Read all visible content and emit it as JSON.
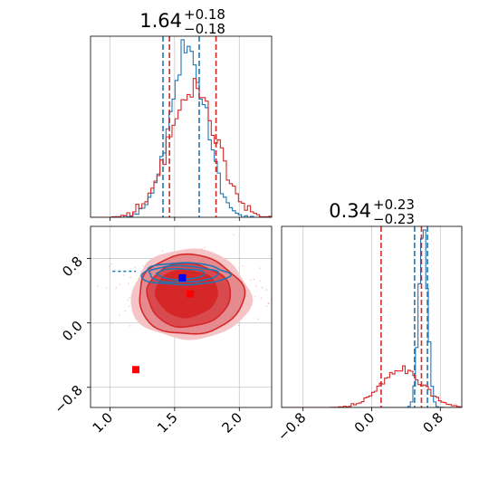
{
  "chart_data": [
    {
      "type": "histogram",
      "title_value": "1.64",
      "title_plus": "+0.18",
      "title_minus": "−0.18",
      "xlim": [
        0.85,
        2.25
      ],
      "grid": true,
      "series": [
        {
          "name": "",
          "color": "#1f77b4",
          "center": 1.6,
          "sigma": 0.14,
          "quantiles": [
            1.41,
            1.69
          ]
        },
        {
          "name": "",
          "color": "#d62728",
          "center": 1.64,
          "sigma": 0.18,
          "quantiles": [
            1.46,
            1.82
          ]
        }
      ]
    },
    {
      "type": "histogram",
      "title_value": "0.34",
      "title_plus": "+0.23",
      "title_minus": "−0.23",
      "xlim": [
        -1.05,
        1.05
      ],
      "xticks": [
        "−0.8",
        "0.0",
        "0.8"
      ],
      "xtick_values": [
        -0.8,
        0.0,
        0.8
      ],
      "grid": true,
      "series": [
        {
          "name": "",
          "color": "#1f77b4",
          "center": 0.6,
          "sigma": 0.05,
          "quantiles": [
            0.5,
            0.65
          ]
        },
        {
          "name": "",
          "color": "#d62728",
          "center": 0.35,
          "sigma": 0.24,
          "quantiles": [
            0.11,
            0.58
          ]
        }
      ]
    },
    {
      "type": "contour",
      "xlim": [
        0.85,
        2.25
      ],
      "ylim": [
        -1.05,
        1.2
      ],
      "xticks": [
        "1.0",
        "1.5",
        "2.0"
      ],
      "xtick_values": [
        1.0,
        1.5,
        2.0
      ],
      "yticks": [
        "−0.8",
        "0.0",
        "0.8"
      ],
      "ytick_values": [
        -0.8,
        0.0,
        0.8
      ],
      "grid": true,
      "markers": [
        {
          "x": 1.56,
          "y": 0.56,
          "color": "#0000ff",
          "shape": "square"
        },
        {
          "x": 1.62,
          "y": 0.36,
          "color": "#ff0000",
          "shape": "square"
        },
        {
          "x": 1.2,
          "y": -0.58,
          "color": "#ff0000",
          "shape": "square"
        }
      ],
      "red_contour": {
        "color": "#d62728",
        "cx": 1.62,
        "cy": 0.37
      },
      "blue_contour": {
        "color": "#1f77b4",
        "cx": 1.56,
        "cy": 0.63
      }
    }
  ]
}
